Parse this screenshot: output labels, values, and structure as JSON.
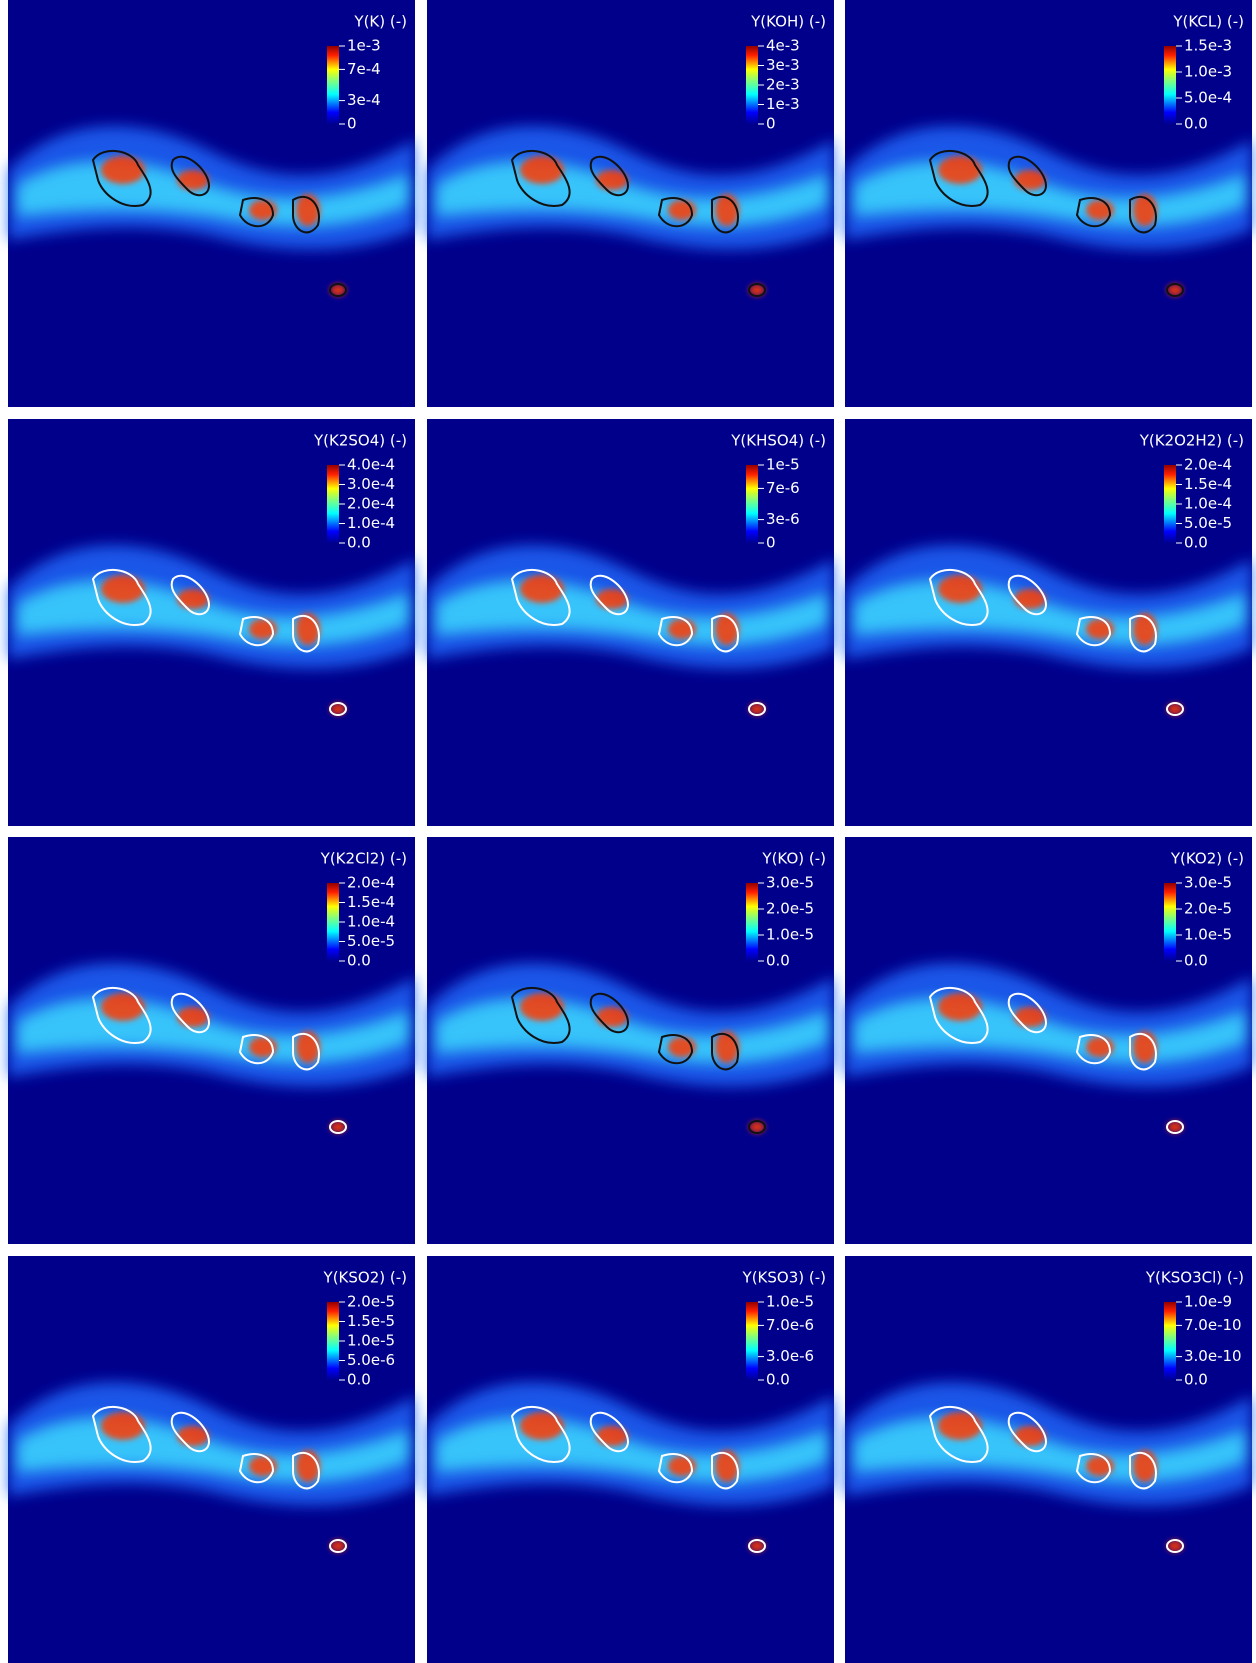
{
  "panels": [
    {
      "title": "Y(K) (-)",
      "ticks": [
        "1e-3",
        "7e-4",
        "3e-4",
        "0"
      ]
    },
    {
      "title": "Y(KOH) (-)",
      "ticks": [
        "4e-3",
        "3e-3",
        "2e-3",
        "1e-3",
        "0"
      ]
    },
    {
      "title": "Y(KCL) (-)",
      "ticks": [
        "1.5e-3",
        "1.0e-3",
        "5.0e-4",
        "0.0"
      ]
    },
    {
      "title": "Y(K2SO4) (-)",
      "ticks": [
        "4.0e-4",
        "3.0e-4",
        "2.0e-4",
        "1.0e-4",
        "0.0"
      ]
    },
    {
      "title": "Y(KHSO4) (-)",
      "ticks": [
        "1e-5",
        "7e-6",
        "3e-6",
        "0"
      ]
    },
    {
      "title": "Y(K2O2H2) (-)",
      "ticks": [
        "2.0e-4",
        "1.5e-4",
        "1.0e-4",
        "5.0e-5",
        "0.0"
      ]
    },
    {
      "title": "Y(K2Cl2) (-)",
      "ticks": [
        "2.0e-4",
        "1.5e-4",
        "1.0e-4",
        "5.0e-5",
        "0.0"
      ]
    },
    {
      "title": "Y(KO) (-)",
      "ticks": [
        "3.0e-5",
        "2.0e-5",
        "1.0e-5",
        "0.0"
      ]
    },
    {
      "title": "Y(KO2) (-)",
      "ticks": [
        "3.0e-5",
        "2.0e-5",
        "1.0e-5",
        "0.0"
      ]
    },
    {
      "title": "Y(KSO2) (-)",
      "ticks": [
        "2.0e-5",
        "1.5e-5",
        "1.0e-5",
        "5.0e-6",
        "0.0"
      ]
    },
    {
      "title": "Y(KSO3) (-)",
      "ticks": [
        "1.0e-5",
        "7.0e-6",
        "3.0e-6",
        "0.0"
      ]
    },
    {
      "title": "Y(KSO3Cl) (-)",
      "ticks": [
        "1.0e-9",
        "7.0e-10",
        "3.0e-10",
        "0.0"
      ]
    }
  ]
}
